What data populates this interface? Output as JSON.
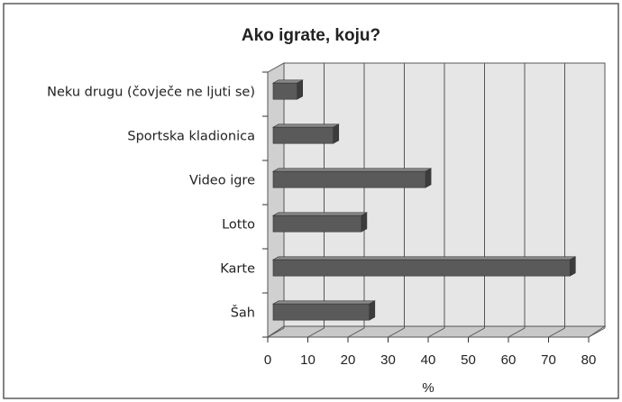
{
  "chart_data": {
    "type": "bar",
    "orientation": "horizontal",
    "title": "Ako igrate, koju?",
    "xlabel": "%",
    "categories": [
      "Neku drugu (čovječe ne ljuti se)",
      "Sportska kladionica",
      "Video igre",
      "Lotto",
      "Karte",
      "Šah"
    ],
    "values": [
      6,
      15,
      38,
      22,
      74,
      24
    ],
    "color": "#5a5a5a",
    "xlim": [
      0,
      80
    ],
    "xticks": [
      0,
      10,
      20,
      30,
      40,
      50,
      60,
      70,
      80
    ],
    "grid": true
  }
}
